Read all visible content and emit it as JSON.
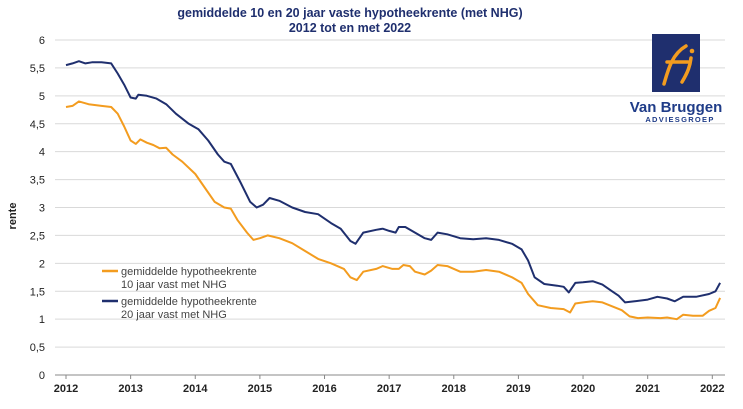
{
  "chart_data": {
    "type": "line",
    "title": "gemiddelde 10 en 20 jaar vaste hypotheekrente (met NHG)",
    "subtitle": "2012 tot en met 2022",
    "ylabel": "rente",
    "xlabel": "",
    "ylim": [
      0,
      6
    ],
    "xlim": [
      2012.0,
      2022.15
    ],
    "grid": true,
    "y_ticks": [
      "0",
      "0,5",
      "1",
      "1,5",
      "2",
      "2,5",
      "3",
      "3,5",
      "4",
      "4,5",
      "5",
      "5,5",
      "6"
    ],
    "x_ticks": [
      {
        "label": "2012",
        "value": 2012
      },
      {
        "label": "2013",
        "value": 2013
      },
      {
        "label": "2014",
        "value": 2014
      },
      {
        "label": "2015",
        "value": 2015
      },
      {
        "label": "2016",
        "value": 2016
      },
      {
        "label": "2017",
        "value": 2017
      },
      {
        "label": "2018",
        "value": 2018
      },
      {
        "label": "2019",
        "value": 2019
      },
      {
        "label": "2020",
        "value": 2020
      },
      {
        "label": "2021",
        "value": 2021
      },
      {
        "label": "2022",
        "value": 2022
      }
    ],
    "legend_position": "center-left",
    "series": [
      {
        "name": "gemiddelde hypotheekrente 10 jaar vast met NHG",
        "legend_lines": [
          "gemiddelde hypotheekrente",
          "10 jaar vast met NHG"
        ],
        "color": "#f39c1f",
        "points": [
          [
            2012.0,
            4.8
          ],
          [
            2012.1,
            4.82
          ],
          [
            2012.2,
            4.9
          ],
          [
            2012.35,
            4.85
          ],
          [
            2012.55,
            4.82
          ],
          [
            2012.7,
            4.8
          ],
          [
            2012.8,
            4.68
          ],
          [
            2012.9,
            4.45
          ],
          [
            2013.0,
            4.2
          ],
          [
            2013.08,
            4.14
          ],
          [
            2013.15,
            4.22
          ],
          [
            2013.25,
            4.16
          ],
          [
            2013.35,
            4.12
          ],
          [
            2013.45,
            4.06
          ],
          [
            2013.55,
            4.07
          ],
          [
            2013.65,
            3.95
          ],
          [
            2013.8,
            3.82
          ],
          [
            2014.0,
            3.6
          ],
          [
            2014.15,
            3.35
          ],
          [
            2014.3,
            3.1
          ],
          [
            2014.45,
            3.0
          ],
          [
            2014.55,
            2.98
          ],
          [
            2014.65,
            2.78
          ],
          [
            2014.8,
            2.55
          ],
          [
            2014.9,
            2.42
          ],
          [
            2015.0,
            2.45
          ],
          [
            2015.12,
            2.5
          ],
          [
            2015.3,
            2.45
          ],
          [
            2015.5,
            2.36
          ],
          [
            2015.7,
            2.22
          ],
          [
            2015.9,
            2.08
          ],
          [
            2016.1,
            2.0
          ],
          [
            2016.3,
            1.9
          ],
          [
            2016.4,
            1.75
          ],
          [
            2016.5,
            1.7
          ],
          [
            2016.6,
            1.85
          ],
          [
            2016.8,
            1.9
          ],
          [
            2016.9,
            1.95
          ],
          [
            2017.05,
            1.9
          ],
          [
            2017.15,
            1.9
          ],
          [
            2017.22,
            1.97
          ],
          [
            2017.32,
            1.95
          ],
          [
            2017.4,
            1.85
          ],
          [
            2017.55,
            1.8
          ],
          [
            2017.65,
            1.87
          ],
          [
            2017.75,
            1.97
          ],
          [
            2017.9,
            1.95
          ],
          [
            2018.1,
            1.85
          ],
          [
            2018.3,
            1.85
          ],
          [
            2018.5,
            1.88
          ],
          [
            2018.7,
            1.85
          ],
          [
            2018.9,
            1.75
          ],
          [
            2019.05,
            1.65
          ],
          [
            2019.15,
            1.45
          ],
          [
            2019.3,
            1.25
          ],
          [
            2019.5,
            1.2
          ],
          [
            2019.7,
            1.18
          ],
          [
            2019.8,
            1.12
          ],
          [
            2019.88,
            1.28
          ],
          [
            2020.0,
            1.3
          ],
          [
            2020.15,
            1.32
          ],
          [
            2020.3,
            1.3
          ],
          [
            2020.45,
            1.23
          ],
          [
            2020.6,
            1.16
          ],
          [
            2020.72,
            1.05
          ],
          [
            2020.85,
            1.02
          ],
          [
            2021.0,
            1.03
          ],
          [
            2021.2,
            1.02
          ],
          [
            2021.3,
            1.03
          ],
          [
            2021.45,
            1.0
          ],
          [
            2021.55,
            1.08
          ],
          [
            2021.7,
            1.06
          ],
          [
            2021.85,
            1.06
          ],
          [
            2021.95,
            1.15
          ],
          [
            2022.05,
            1.2
          ],
          [
            2022.12,
            1.38
          ]
        ]
      },
      {
        "name": "gemiddelde hypotheekrente 20 jaar vast met NHG",
        "legend_lines": [
          "gemiddelde hypotheekrente",
          "20 jaar vast met NHG"
        ],
        "color": "#1f2f6e",
        "points": [
          [
            2012.0,
            5.55
          ],
          [
            2012.1,
            5.58
          ],
          [
            2012.2,
            5.62
          ],
          [
            2012.3,
            5.58
          ],
          [
            2012.4,
            5.6
          ],
          [
            2012.55,
            5.6
          ],
          [
            2012.7,
            5.58
          ],
          [
            2012.8,
            5.4
          ],
          [
            2012.9,
            5.2
          ],
          [
            2013.0,
            4.97
          ],
          [
            2013.08,
            4.95
          ],
          [
            2013.12,
            5.02
          ],
          [
            2013.25,
            5.0
          ],
          [
            2013.4,
            4.95
          ],
          [
            2013.55,
            4.85
          ],
          [
            2013.7,
            4.68
          ],
          [
            2013.9,
            4.5
          ],
          [
            2014.05,
            4.4
          ],
          [
            2014.2,
            4.2
          ],
          [
            2014.35,
            3.95
          ],
          [
            2014.45,
            3.82
          ],
          [
            2014.55,
            3.78
          ],
          [
            2014.7,
            3.45
          ],
          [
            2014.85,
            3.1
          ],
          [
            2014.95,
            3.0
          ],
          [
            2015.05,
            3.05
          ],
          [
            2015.15,
            3.17
          ],
          [
            2015.3,
            3.12
          ],
          [
            2015.5,
            3.0
          ],
          [
            2015.7,
            2.92
          ],
          [
            2015.9,
            2.88
          ],
          [
            2016.1,
            2.72
          ],
          [
            2016.25,
            2.62
          ],
          [
            2016.4,
            2.4
          ],
          [
            2016.48,
            2.35
          ],
          [
            2016.6,
            2.55
          ],
          [
            2016.8,
            2.6
          ],
          [
            2016.9,
            2.62
          ],
          [
            2017.0,
            2.58
          ],
          [
            2017.1,
            2.55
          ],
          [
            2017.15,
            2.65
          ],
          [
            2017.25,
            2.65
          ],
          [
            2017.4,
            2.55
          ],
          [
            2017.55,
            2.45
          ],
          [
            2017.65,
            2.42
          ],
          [
            2017.75,
            2.55
          ],
          [
            2017.9,
            2.52
          ],
          [
            2018.1,
            2.45
          ],
          [
            2018.3,
            2.43
          ],
          [
            2018.5,
            2.45
          ],
          [
            2018.7,
            2.42
          ],
          [
            2018.9,
            2.35
          ],
          [
            2019.05,
            2.25
          ],
          [
            2019.15,
            2.05
          ],
          [
            2019.25,
            1.75
          ],
          [
            2019.4,
            1.63
          ],
          [
            2019.6,
            1.6
          ],
          [
            2019.7,
            1.58
          ],
          [
            2019.78,
            1.48
          ],
          [
            2019.88,
            1.65
          ],
          [
            2020.0,
            1.66
          ],
          [
            2020.15,
            1.68
          ],
          [
            2020.3,
            1.62
          ],
          [
            2020.45,
            1.5
          ],
          [
            2020.55,
            1.42
          ],
          [
            2020.65,
            1.3
          ],
          [
            2020.8,
            1.32
          ],
          [
            2021.0,
            1.35
          ],
          [
            2021.15,
            1.4
          ],
          [
            2021.3,
            1.37
          ],
          [
            2021.42,
            1.32
          ],
          [
            2021.55,
            1.4
          ],
          [
            2021.75,
            1.4
          ],
          [
            2021.95,
            1.45
          ],
          [
            2022.05,
            1.5
          ],
          [
            2022.12,
            1.65
          ]
        ]
      }
    ]
  },
  "logo": {
    "name": "Van Bruggen",
    "subtitle": "ADVIESGROEP",
    "mark": "fj"
  }
}
